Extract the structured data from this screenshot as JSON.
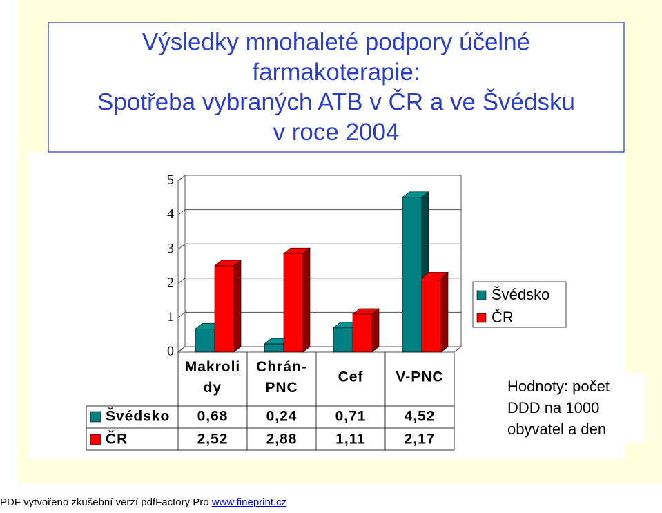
{
  "chart_data": {
    "type": "bar3d",
    "title": [
      "Výsledky mnohaleté podpory účelné",
      "farmakoterapie:",
      "Spotřeba vybraných ATB v ČR a ve Švédsku",
      "v roce 2004"
    ],
    "categories": [
      "Makroli dy",
      "Chrán- PNC",
      "Cef",
      "V-PNC"
    ],
    "series": [
      {
        "name": "Švédsko",
        "color": "#008080",
        "values": [
          0.68,
          0.24,
          0.71,
          4.52
        ],
        "value_labels": [
          "0,68",
          "0,24",
          "0,71",
          "4,52"
        ]
      },
      {
        "name": "ČR",
        "color": "#ff0000",
        "values": [
          2.52,
          2.88,
          1.11,
          2.17
        ],
        "value_labels": [
          "2,52",
          "2,88",
          "1,11",
          "2,17"
        ]
      }
    ],
    "ylim": [
      0,
      5
    ],
    "yticks": [
      0,
      1,
      2,
      3,
      4,
      5
    ],
    "grid": true,
    "legend": "right",
    "note": [
      "Hodnoty: počet",
      "DDD na 1000",
      "obyvatel a den"
    ]
  },
  "footer": {
    "text": "PDF vytvořeno zkušební verzí pdfFactory Pro",
    "link": "www.fineprint.cz"
  }
}
